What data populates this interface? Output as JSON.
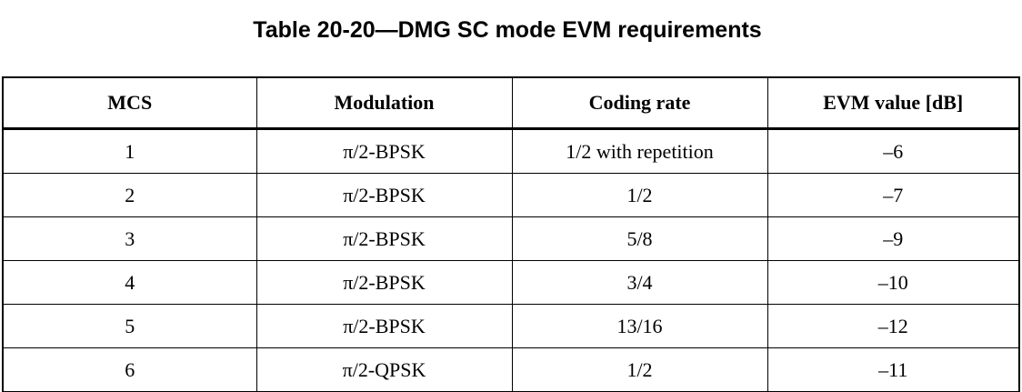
{
  "caption": "Table 20-20—DMG SC mode EVM requirements",
  "table": {
    "headers": [
      "MCS",
      "Modulation",
      "Coding rate",
      "EVM value [dB]"
    ],
    "rows": [
      [
        "1",
        "π/2-BPSK",
        "1/2 with repetition",
        "–6"
      ],
      [
        "2",
        "π/2-BPSK",
        "1/2",
        "–7"
      ],
      [
        "3",
        "π/2-BPSK",
        "5/8",
        "–9"
      ],
      [
        "4",
        "π/2-BPSK",
        "3/4",
        "–10"
      ],
      [
        "5",
        "π/2-BPSK",
        "13/16",
        "–12"
      ],
      [
        "6",
        "π/2-QPSK",
        "1/2",
        "–11"
      ]
    ]
  }
}
